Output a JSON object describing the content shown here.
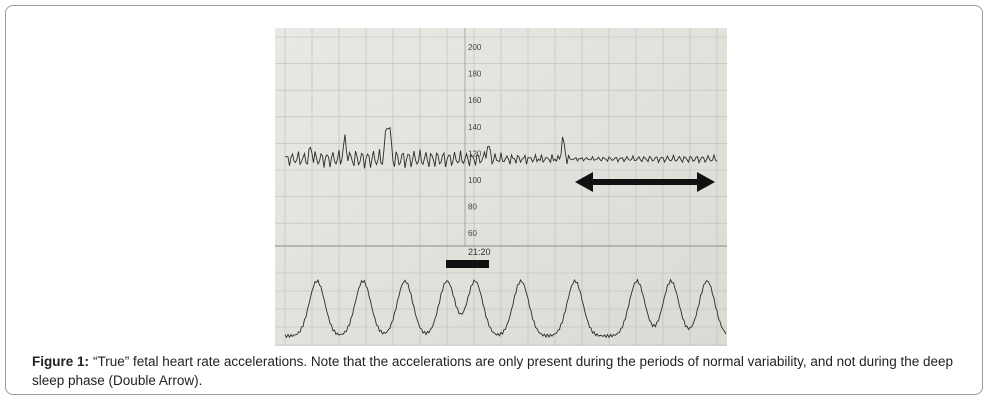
{
  "figure": {
    "image": {
      "scale_labels": [
        "200",
        "180",
        "160",
        "140",
        "120",
        "100",
        "80",
        "60"
      ],
      "time_label": "21:20"
    },
    "caption": {
      "label": "Figure 1:",
      "text": "“True” fetal heart rate accelerations. Note that the accelerations are only present during the periods of normal variability, and not during the deep sleep phase (Double Arrow)."
    }
  }
}
